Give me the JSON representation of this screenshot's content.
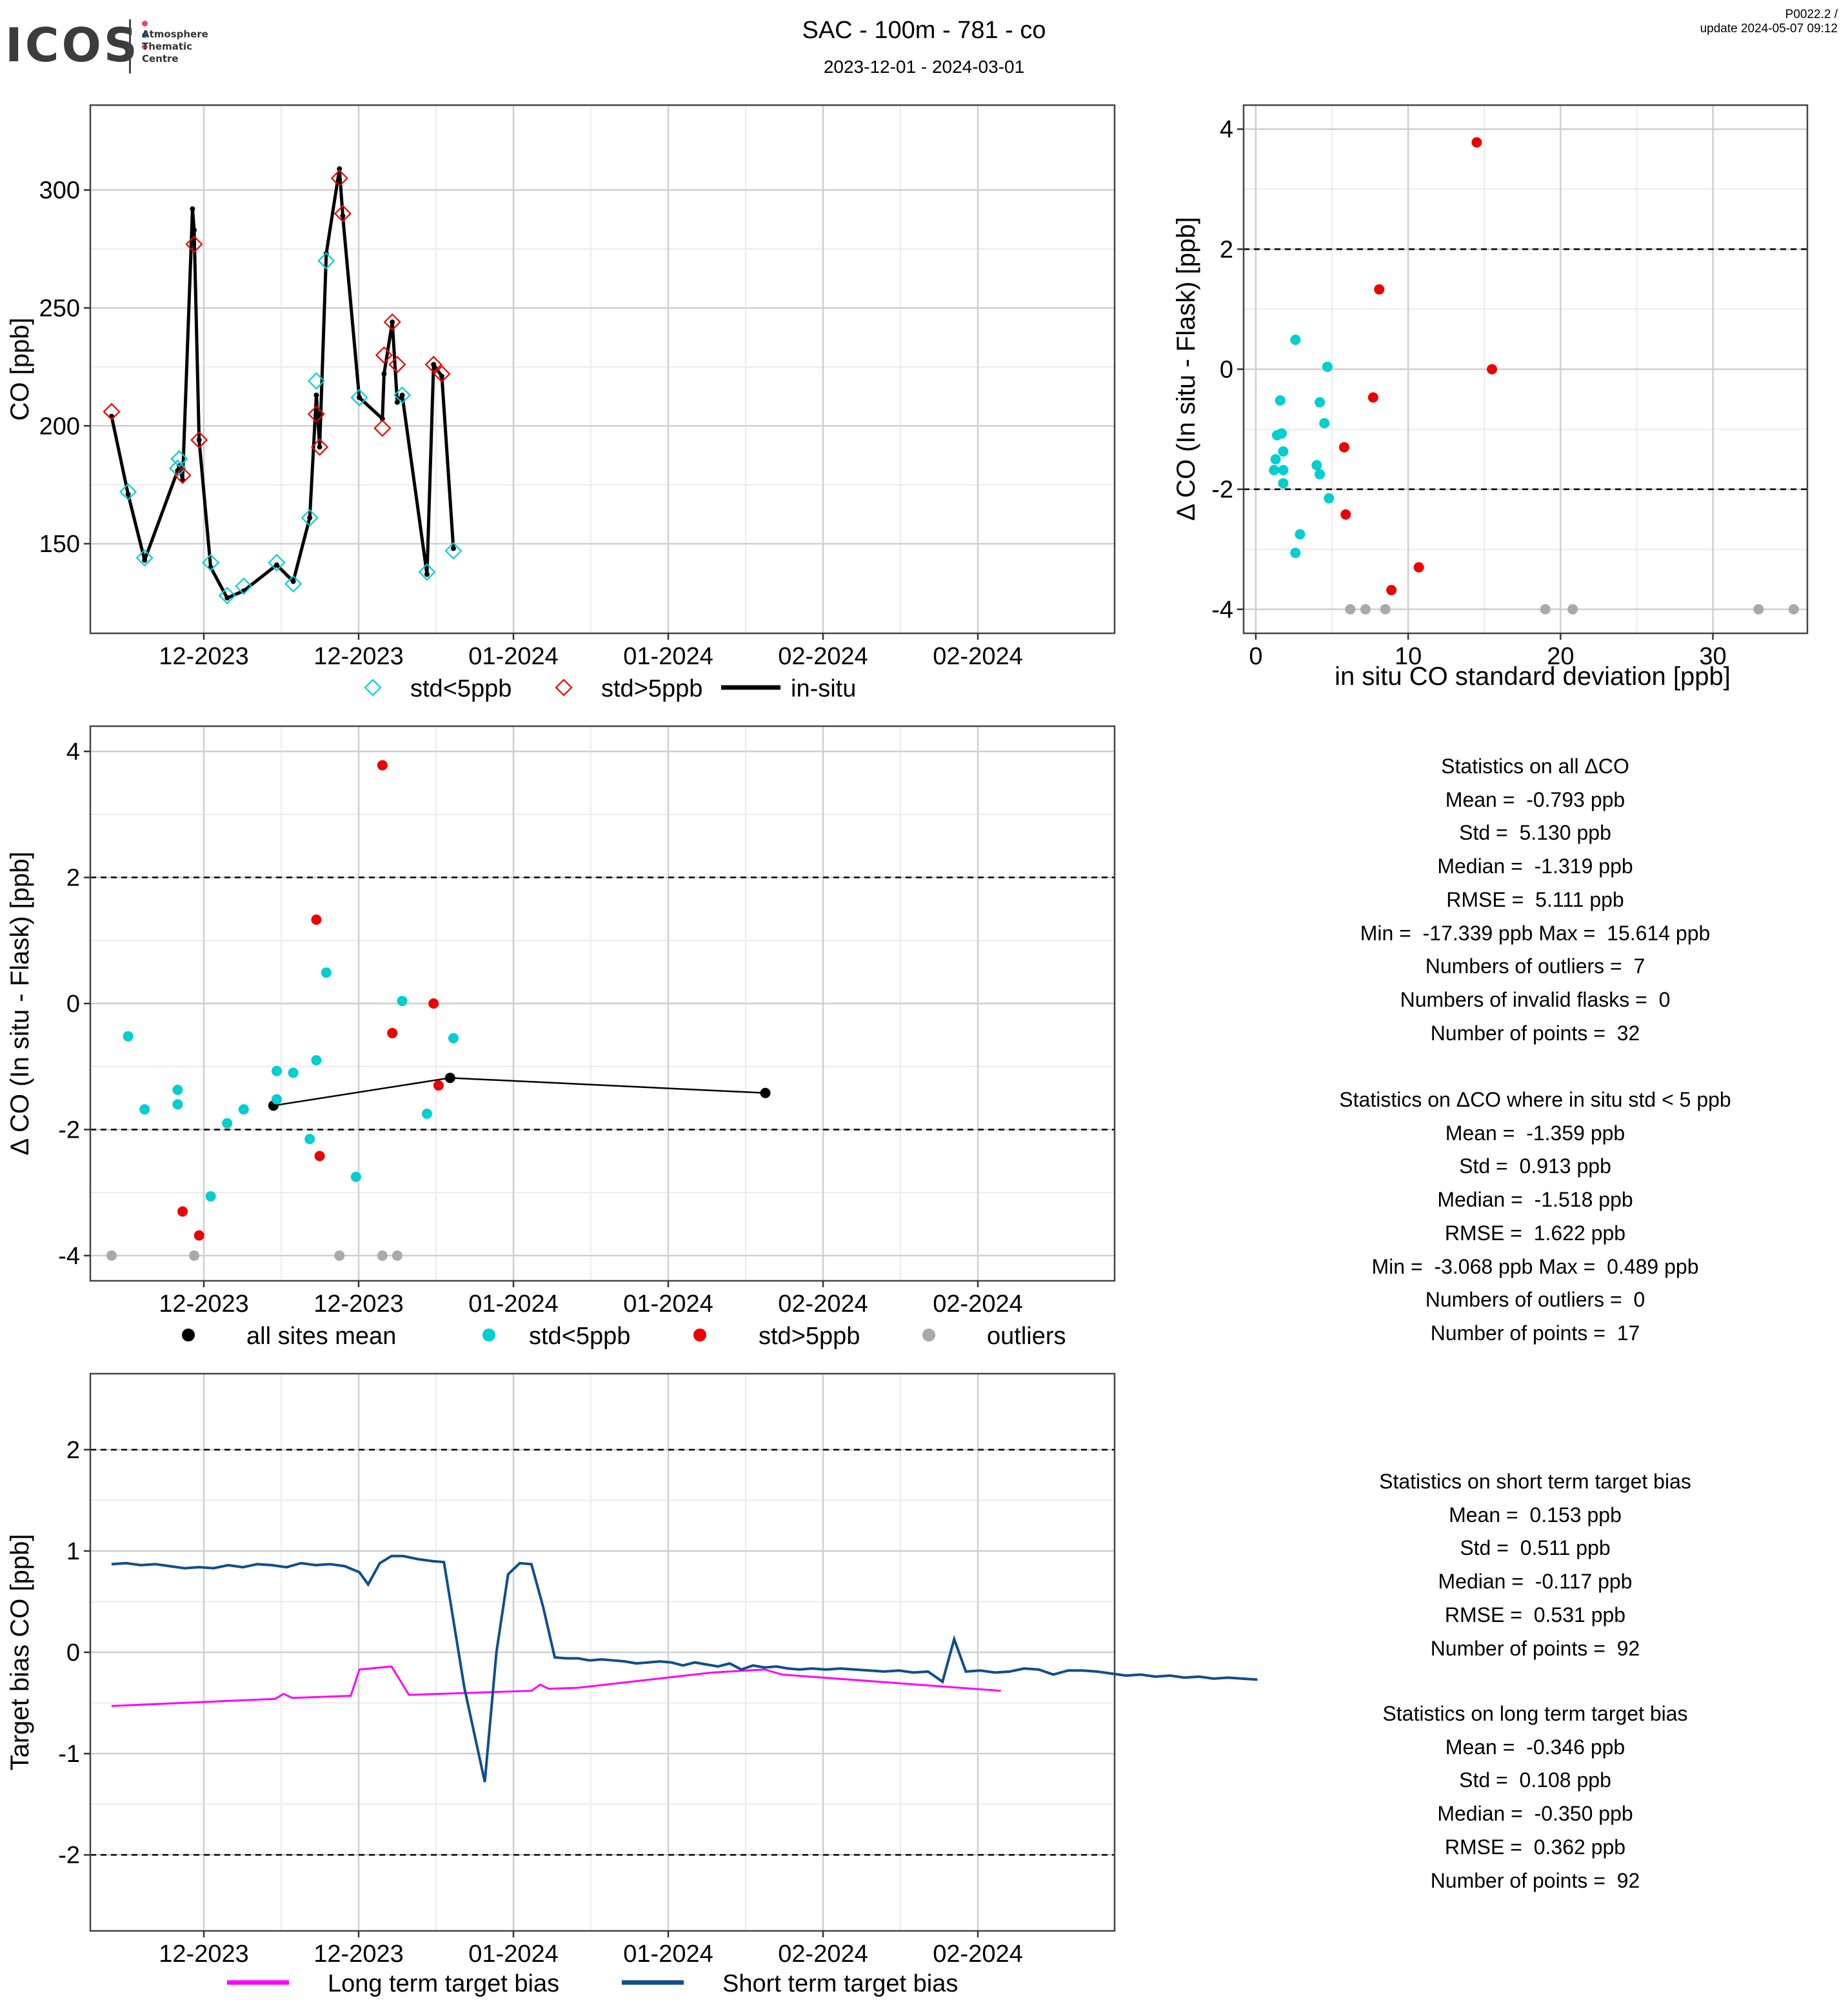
{
  "header": {
    "logo_text": "ICOS",
    "logo_subtitle": "Atmosphere\nThematic\nCentre",
    "title": "SAC - 100m - 781 - co",
    "period": "2023-12-01 - 2024-03-01",
    "version": "P0022.2 /",
    "update": "update  2024-05-07 09:12"
  },
  "colors": {
    "std_lt5": "#00CED1",
    "std_gt5": "#EE0000",
    "outlier": "#A9A9A9",
    "insitu": "#000000",
    "long_term": "#FF00FF",
    "short_term": "#104E8B"
  },
  "chart_data": [
    {
      "id": "timeseries",
      "type": "line",
      "ylabel": "CO [ppb]",
      "x_ticks": [
        "12-2023",
        "12-2023",
        "01-2024",
        "01-2024",
        "02-2024",
        "02-2024"
      ],
      "y_ticks": [
        150,
        200,
        250,
        300
      ],
      "ylim": [
        112,
        336
      ],
      "legend": [
        "std<5ppb",
        "std>5ppb",
        "in-situ"
      ],
      "insitu": [
        [
          0,
          204
        ],
        [
          1,
          171
        ],
        [
          2,
          143
        ],
        [
          4,
          181
        ],
        [
          4.1,
          183
        ],
        [
          4.3,
          177
        ],
        [
          4.9,
          292
        ],
        [
          5,
          283
        ],
        [
          5.3,
          194
        ],
        [
          6,
          140
        ],
        [
          7,
          127
        ],
        [
          8,
          130
        ],
        [
          10,
          141
        ],
        [
          11,
          134
        ],
        [
          12,
          161
        ],
        [
          12.4,
          213
        ],
        [
          12.6,
          191
        ],
        [
          13,
          273
        ],
        [
          13.8,
          309
        ],
        [
          14,
          289
        ],
        [
          15,
          212
        ],
        [
          16.4,
          203
        ],
        [
          16.5,
          222
        ],
        [
          17,
          244
        ],
        [
          17.3,
          210
        ],
        [
          17.6,
          213
        ],
        [
          19.1,
          137
        ],
        [
          19.5,
          226
        ],
        [
          20,
          221
        ],
        [
          20.7,
          148
        ]
      ],
      "flask_lt5": [
        [
          1,
          172
        ],
        [
          2,
          144
        ],
        [
          4,
          182
        ],
        [
          4.1,
          186
        ],
        [
          6,
          142
        ],
        [
          7,
          128
        ],
        [
          8,
          132
        ],
        [
          10,
          142
        ],
        [
          11,
          133
        ],
        [
          12,
          161
        ],
        [
          12.4,
          219
        ],
        [
          13,
          270
        ],
        [
          15,
          212
        ],
        [
          17.6,
          213
        ],
        [
          19.1,
          138
        ],
        [
          20.7,
          147
        ]
      ],
      "flask_gt5": [
        [
          0,
          206
        ],
        [
          4.3,
          179
        ],
        [
          5,
          277
        ],
        [
          5.3,
          194
        ],
        [
          12.4,
          205
        ],
        [
          12.6,
          191
        ],
        [
          13.8,
          305
        ],
        [
          14,
          290
        ],
        [
          16.4,
          199
        ],
        [
          16.5,
          230
        ],
        [
          17,
          244
        ],
        [
          17.3,
          226
        ],
        [
          19.5,
          226
        ],
        [
          20,
          222
        ]
      ]
    },
    {
      "id": "scatter",
      "type": "scatter",
      "xlabel": "in situ CO standard deviation [ppb]",
      "ylabel": "Δ CO (In situ - Flask) [ppb]",
      "x_ticks": [
        0,
        10,
        20,
        30
      ],
      "y_ticks": [
        -4,
        -2,
        0,
        2,
        4
      ],
      "xlim": [
        -0.8,
        36.2
      ],
      "ylim": [
        -4.4,
        4.4
      ],
      "hlines": [
        2,
        -2
      ],
      "points_lt5": [
        [
          2.6,
          0.49
        ],
        [
          4.7,
          0.04
        ],
        [
          1.6,
          -0.52
        ],
        [
          4.2,
          -0.55
        ],
        [
          4.5,
          -0.9
        ],
        [
          1.7,
          -1.07
        ],
        [
          1.4,
          -1.1
        ],
        [
          1.8,
          -1.37
        ],
        [
          1.3,
          -1.5
        ],
        [
          4.0,
          -1.6
        ],
        [
          1.2,
          -1.68
        ],
        [
          1.8,
          -1.68
        ],
        [
          4.2,
          -1.75
        ],
        [
          1.8,
          -1.9
        ],
        [
          4.8,
          -2.15
        ],
        [
          2.9,
          -2.75
        ],
        [
          2.6,
          -3.06
        ]
      ],
      "points_gt5": [
        [
          14.5,
          3.78
        ],
        [
          8.1,
          1.33
        ],
        [
          15.5,
          0.0
        ],
        [
          7.7,
          -0.47
        ],
        [
          5.8,
          -1.3
        ],
        [
          5.9,
          -2.42
        ],
        [
          10.7,
          -3.3
        ],
        [
          8.9,
          -3.68
        ]
      ],
      "points_outlier": [
        [
          6.2,
          -4
        ],
        [
          7.2,
          -4
        ],
        [
          8.5,
          -4
        ],
        [
          19.0,
          -4
        ],
        [
          20.8,
          -4
        ],
        [
          33.0,
          -4
        ],
        [
          35.3,
          -4
        ]
      ]
    },
    {
      "id": "delta",
      "type": "scatter",
      "ylabel": "Δ CO (In situ - Flask) [ppb]",
      "x_ticks": [
        "12-2023",
        "12-2023",
        "01-2024",
        "01-2024",
        "02-2024",
        "02-2024"
      ],
      "y_ticks": [
        -4,
        -2,
        0,
        2,
        4
      ],
      "ylim": [
        -4.4,
        4.4
      ],
      "hlines": [
        2,
        -2
      ],
      "legend": [
        "all sites mean",
        "std<5ppb",
        "std>5ppb",
        "outliers"
      ],
      "points_lt5": [
        [
          1,
          -0.52
        ],
        [
          2,
          -1.68
        ],
        [
          4,
          -1.37
        ],
        [
          4,
          -1.6
        ],
        [
          6,
          -3.06
        ],
        [
          7,
          -1.9
        ],
        [
          8,
          -1.68
        ],
        [
          10,
          -1.07
        ],
        [
          10,
          -1.52
        ],
        [
          11,
          -1.1
        ],
        [
          12,
          -2.15
        ],
        [
          12.4,
          -0.9
        ],
        [
          13,
          0.49
        ],
        [
          14.8,
          -2.75
        ],
        [
          17.6,
          0.04
        ],
        [
          19.1,
          -1.75
        ],
        [
          20.7,
          -0.55
        ]
      ],
      "points_gt5": [
        [
          4.3,
          -3.3
        ],
        [
          5.3,
          -3.68
        ],
        [
          12.4,
          1.33
        ],
        [
          12.6,
          -2.42
        ],
        [
          16.4,
          3.78
        ],
        [
          17,
          -0.47
        ],
        [
          19.5,
          0.0
        ],
        [
          19.8,
          -1.3
        ]
      ],
      "points_outlier": [
        [
          0,
          -4
        ],
        [
          5,
          -4
        ],
        [
          13.8,
          -4
        ],
        [
          16.4,
          -4
        ],
        [
          17.3,
          -4
        ]
      ],
      "mean": [
        [
          9.8,
          -1.62
        ],
        [
          20.5,
          -1.18
        ],
        [
          30.5,
          -1.42
        ]
      ]
    },
    {
      "id": "bias",
      "type": "line",
      "ylabel": "Target bias CO [ppb]",
      "x_ticks": [
        "12-2023",
        "12-2023",
        "01-2024",
        "01-2024",
        "02-2024",
        "02-2024"
      ],
      "y_ticks": [
        -2,
        -1,
        0,
        1,
        2
      ],
      "ylim": [
        -2.75,
        2.75
      ],
      "hlines": [
        2,
        -2
      ],
      "legend": [
        "Long term target bias",
        "Short term target bias"
      ],
      "long_term": [
        [
          0,
          -0.53
        ],
        [
          5.6,
          -0.46
        ],
        [
          5.9,
          -0.41
        ],
        [
          6.2,
          -0.45
        ],
        [
          8.2,
          -0.43
        ],
        [
          8.5,
          -0.17
        ],
        [
          9.6,
          -0.14
        ],
        [
          10.2,
          -0.42
        ],
        [
          14.4,
          -0.38
        ],
        [
          14.7,
          -0.32
        ],
        [
          15,
          -0.36
        ],
        [
          16,
          -0.35
        ],
        [
          20.6,
          -0.2
        ],
        [
          22.4,
          -0.17
        ],
        [
          23,
          -0.22
        ],
        [
          30.5,
          -0.38
        ]
      ],
      "short_term": [
        [
          0,
          0.87
        ],
        [
          0.5,
          0.88
        ],
        [
          1,
          0.86
        ],
        [
          1.5,
          0.87
        ],
        [
          2,
          0.85
        ],
        [
          2.5,
          0.83
        ],
        [
          3,
          0.84
        ],
        [
          3.5,
          0.83
        ],
        [
          4,
          0.86
        ],
        [
          4.5,
          0.84
        ],
        [
          5,
          0.87
        ],
        [
          5.5,
          0.86
        ],
        [
          6,
          0.84
        ],
        [
          6.5,
          0.88
        ],
        [
          7,
          0.86
        ],
        [
          7.5,
          0.87
        ],
        [
          8,
          0.85
        ],
        [
          8.5,
          0.79
        ],
        [
          8.8,
          0.67
        ],
        [
          9.2,
          0.88
        ],
        [
          9.6,
          0.95
        ],
        [
          10,
          0.95
        ],
        [
          10.5,
          0.92
        ],
        [
          11,
          0.9
        ],
        [
          11.4,
          0.89
        ],
        [
          12.1,
          -0.35
        ],
        [
          12.8,
          -1.28
        ],
        [
          13.2,
          0.0
        ],
        [
          13.6,
          0.77
        ],
        [
          14,
          0.88
        ],
        [
          14.4,
          0.87
        ],
        [
          14.8,
          0.45
        ],
        [
          15.2,
          -0.05
        ],
        [
          15.6,
          -0.06
        ],
        [
          16,
          -0.06
        ],
        [
          16.4,
          -0.08
        ],
        [
          16.8,
          -0.07
        ],
        [
          17.2,
          -0.08
        ],
        [
          17.6,
          -0.09
        ],
        [
          18,
          -0.11
        ],
        [
          18.4,
          -0.1
        ],
        [
          18.8,
          -0.09
        ],
        [
          19.2,
          -0.1
        ],
        [
          19.6,
          -0.13
        ],
        [
          20,
          -0.1
        ],
        [
          20.4,
          -0.12
        ],
        [
          20.8,
          -0.14
        ],
        [
          21.2,
          -0.11
        ],
        [
          21.6,
          -0.17
        ],
        [
          22,
          -0.13
        ],
        [
          22.4,
          -0.15
        ],
        [
          22.8,
          -0.14
        ],
        [
          23.2,
          -0.16
        ],
        [
          23.6,
          -0.17
        ],
        [
          24,
          -0.16
        ],
        [
          24.5,
          -0.17
        ],
        [
          25,
          -0.16
        ],
        [
          25.5,
          -0.17
        ],
        [
          26,
          -0.18
        ],
        [
          26.5,
          -0.19
        ],
        [
          27,
          -0.18
        ],
        [
          27.5,
          -0.2
        ],
        [
          28,
          -0.19
        ],
        [
          28.5,
          -0.29
        ],
        [
          28.9,
          0.13
        ],
        [
          29.3,
          -0.19
        ],
        [
          29.8,
          -0.18
        ],
        [
          30.3,
          -0.2
        ],
        [
          30.8,
          -0.19
        ],
        [
          31.3,
          -0.16
        ],
        [
          31.8,
          -0.17
        ],
        [
          32.3,
          -0.22
        ],
        [
          32.8,
          -0.18
        ],
        [
          33.3,
          -0.18
        ],
        [
          33.8,
          -0.19
        ],
        [
          34.3,
          -0.21
        ],
        [
          34.8,
          -0.23
        ],
        [
          35.3,
          -0.22
        ],
        [
          35.8,
          -0.24
        ],
        [
          36.3,
          -0.23
        ],
        [
          36.8,
          -0.25
        ],
        [
          37.3,
          -0.24
        ],
        [
          37.8,
          -0.26
        ],
        [
          38.3,
          -0.25
        ],
        [
          38.8,
          -0.26
        ],
        [
          39.3,
          -0.27
        ]
      ]
    }
  ],
  "stats_all": {
    "title": "Statistics on all ΔCO",
    "lines": [
      "Mean =  -0.793 ppb",
      "Std =  5.130 ppb",
      "Median =  -1.319 ppb",
      "RMSE =  5.111 ppb",
      "Min =  -17.339 ppb Max =  15.614 ppb",
      "Numbers of outliers =  7",
      "Numbers of invalid flasks =  0",
      "Number of points =  32"
    ]
  },
  "stats_lt5": {
    "title": "Statistics on ΔCO where in situ std < 5 ppb",
    "lines": [
      "Mean =  -1.359 ppb",
      "Std =  0.913 ppb",
      "Median =  -1.518 ppb",
      "RMSE =  1.622 ppb",
      "Min =  -3.068 ppb Max =  0.489 ppb",
      "Numbers of outliers =  0",
      "Number of points =  17"
    ]
  },
  "stats_short": {
    "title": "Statistics on short term target bias",
    "lines": [
      "Mean =  0.153 ppb",
      "Std =  0.511 ppb",
      "Median =  -0.117 ppb",
      "RMSE =  0.531 ppb",
      "Number of points =  92"
    ]
  },
  "stats_long": {
    "title": "Statistics on long term target bias",
    "lines": [
      "Mean =  -0.346 ppb",
      "Std =  0.108 ppb",
      "Median =  -0.350 ppb",
      "RMSE =  0.362 ppb",
      "Number of points =  92"
    ]
  }
}
